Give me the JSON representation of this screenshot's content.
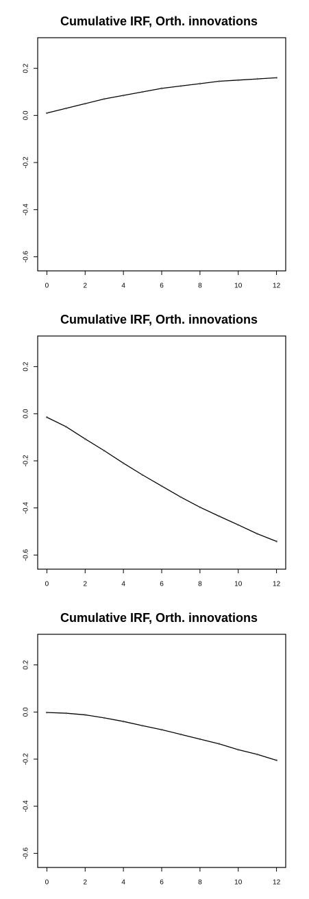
{
  "chart_data": [
    {
      "type": "line",
      "title": "Cumulative IRF, Orth. innovations",
      "x": [
        0,
        1,
        2,
        3,
        4,
        5,
        6,
        7,
        8,
        9,
        10,
        11,
        12
      ],
      "values": [
        0.01,
        0.03,
        0.05,
        0.07,
        0.085,
        0.1,
        0.115,
        0.125,
        0.135,
        0.145,
        0.15,
        0.155,
        0.16
      ],
      "xlim": [
        -0.48,
        12.48
      ],
      "ylim": [
        -0.66,
        0.33
      ],
      "xticks": [
        0,
        2,
        4,
        6,
        8,
        10,
        12
      ],
      "yticks": [
        -0.6,
        -0.4,
        -0.2,
        {
          "value": 0,
          "label": "0.0"
        },
        0.2
      ],
      "color": "#000000"
    },
    {
      "type": "line",
      "title": "Cumulative IRF, Orth. innovations",
      "x": [
        0,
        1,
        2,
        3,
        4,
        5,
        6,
        7,
        8,
        9,
        10,
        11,
        12
      ],
      "values": [
        -0.015,
        -0.055,
        -0.107,
        -0.157,
        -0.21,
        -0.26,
        -0.307,
        -0.354,
        -0.397,
        -0.435,
        -0.472,
        -0.51,
        -0.542
      ],
      "xlim": [
        -0.48,
        12.48
      ],
      "ylim": [
        -0.66,
        0.33
      ],
      "xticks": [
        0,
        2,
        4,
        6,
        8,
        10,
        12
      ],
      "yticks": [
        -0.6,
        -0.4,
        -0.2,
        {
          "value": 0,
          "label": "0.0"
        },
        0.2
      ],
      "color": "#000000"
    },
    {
      "type": "line",
      "title": "Cumulative IRF, Orth. innovations",
      "x": [
        0,
        1,
        2,
        3,
        4,
        5,
        6,
        7,
        8,
        9,
        10,
        11,
        12
      ],
      "values": [
        -0.002,
        -0.005,
        -0.012,
        -0.025,
        -0.04,
        -0.058,
        -0.075,
        -0.095,
        -0.115,
        -0.135,
        -0.16,
        -0.18,
        -0.205
      ],
      "xlim": [
        -0.48,
        12.48
      ],
      "ylim": [
        -0.66,
        0.33
      ],
      "xticks": [
        0,
        2,
        4,
        6,
        8,
        10,
        12
      ],
      "yticks": [
        -0.6,
        -0.4,
        -0.2,
        {
          "value": 0,
          "label": "0.0"
        },
        0.2
      ],
      "color": "#000000"
    }
  ]
}
